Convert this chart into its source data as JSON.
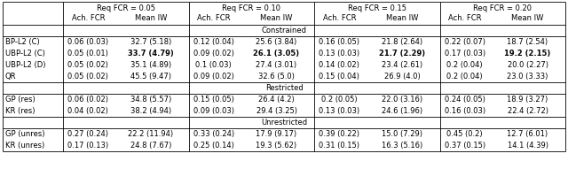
{
  "group_labels": [
    "Req FCR = 0.05",
    "Req FCR = 0.10",
    "Req FCR = 0.15",
    "Req FCR = 0.20"
  ],
  "sub_labels": [
    "Ach. FCR",
    "Mean IW"
  ],
  "sections": [
    {
      "label": "Constrained",
      "rows": [
        [
          "BP-L2 (C)",
          "0.06 (0.03)",
          "32.7 (5.18)",
          "0.12 (0.04)",
          "25.6 (3.84)",
          "0.16 (0.05)",
          "21.8 (2.64)",
          "0.22 (0.07)",
          "18.7 (2.54)"
        ],
        [
          "UBP-L2 (C)",
          "0.05 (0.01)",
          "bold:33.7 (4.79)",
          "0.09 (0.02)",
          "bold:26.1 (3.05)",
          "0.13 (0.03)",
          "bold:21.7 (2.29)",
          "0.17 (0.03)",
          "bold:19.2 (2.15)"
        ],
        [
          "UBP-L2 (D)",
          "0.05 (0.02)",
          "35.1 (4.89)",
          "0.1 (0.03)",
          "27.4 (3.01)",
          "0.14 (0.02)",
          "23.4 (2.61)",
          "0.2 (0.04)",
          "20.0 (2.27)"
        ],
        [
          "QR",
          "0.05 (0.02)",
          "45.5 (9.47)",
          "0.09 (0.02)",
          "32.6 (5.0)",
          "0.15 (0.04)",
          "26.9 (4.0)",
          "0.2 (0.04)",
          "23.0 (3.33)"
        ]
      ]
    },
    {
      "label": "Restricted",
      "rows": [
        [
          "GP (res)",
          "0.06 (0.02)",
          "34.8 (5.57)",
          "0.15 (0.05)",
          "26.4 (4.2)",
          "0.2 (0.05)",
          "22.0 (3.16)",
          "0.24 (0.05)",
          "18.9 (3.27)"
        ],
        [
          "KR (res)",
          "0.04 (0.02)",
          "38.2 (4.94)",
          "0.09 (0.03)",
          "29.4 (3.25)",
          "0.13 (0.03)",
          "24.6 (1.96)",
          "0.16 (0.03)",
          "22.4 (2.72)"
        ]
      ]
    },
    {
      "label": "Unrestricted",
      "rows": [
        [
          "GP (unres)",
          "0.27 (0.24)",
          "22.2 (11.94)",
          "0.33 (0.24)",
          "17.9 (9.17)",
          "0.39 (0.22)",
          "15.0 (7.29)",
          "0.45 (0.2)",
          "12.7 (6.01)"
        ],
        [
          "KR (unres)",
          "0.17 (0.13)",
          "24.8 (7.67)",
          "0.25 (0.14)",
          "19.3 (5.62)",
          "0.31 (0.15)",
          "16.3 (5.16)",
          "0.37 (0.15)",
          "14.1 (4.39)"
        ]
      ]
    }
  ],
  "background": "#ffffff",
  "text_color": "#000000",
  "font_size": 6.0,
  "line_color": "#000000"
}
